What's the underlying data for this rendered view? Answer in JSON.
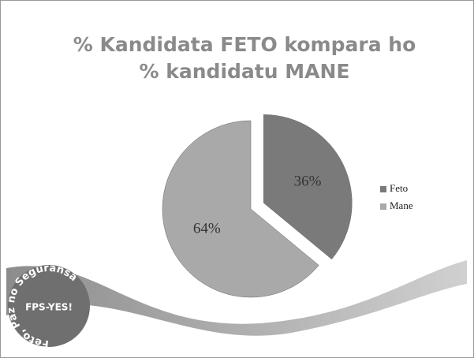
{
  "chart_data": {
    "type": "pie",
    "title": "% Kandidata FETO kompara ho % kandidatu MANE",
    "categories": [
      "Feto",
      "Mane"
    ],
    "values": [
      36,
      64
    ],
    "value_labels": [
      "36%",
      "64%"
    ],
    "colors": [
      "#7a7a7a",
      "#a9a9a9"
    ],
    "legend": "right"
  },
  "logo": {
    "ring_text": "Feto, Paz no Seguransa",
    "center_text": "FPS-YES!"
  }
}
